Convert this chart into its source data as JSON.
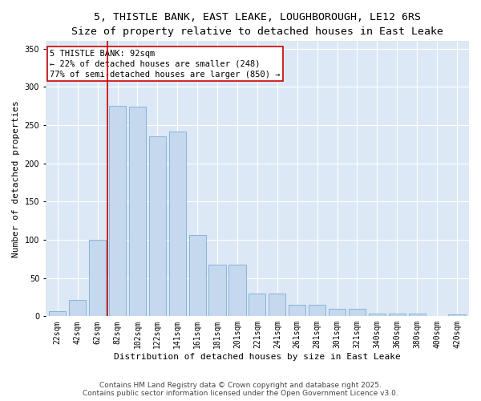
{
  "title_line1": "5, THISTLE BANK, EAST LEAKE, LOUGHBOROUGH, LE12 6RS",
  "title_line2": "Size of property relative to detached houses in East Leake",
  "xlabel": "Distribution of detached houses by size in East Leake",
  "ylabel": "Number of detached properties",
  "categories": [
    "22sqm",
    "42sqm",
    "62sqm",
    "82sqm",
    "102sqm",
    "122sqm",
    "141sqm",
    "161sqm",
    "181sqm",
    "201sqm",
    "221sqm",
    "241sqm",
    "261sqm",
    "281sqm",
    "301sqm",
    "321sqm",
    "340sqm",
    "360sqm",
    "380sqm",
    "400sqm",
    "420sqm"
  ],
  "values": [
    7,
    21,
    100,
    275,
    274,
    235,
    242,
    106,
    68,
    68,
    30,
    30,
    15,
    15,
    10,
    10,
    3,
    4,
    3,
    0,
    2
  ],
  "bar_color": "#c5d8ee",
  "bar_edge_color": "#7aadd4",
  "vline_color": "#cc0000",
  "vline_index": 3,
  "annotation_text": "5 THISTLE BANK: 92sqm\n← 22% of detached houses are smaller (248)\n77% of semi-detached houses are larger (850) →",
  "annotation_box_color": "#cc0000",
  "ylim": [
    0,
    360
  ],
  "yticks": [
    0,
    50,
    100,
    150,
    200,
    250,
    300,
    350
  ],
  "bg_color": "#dce8f5",
  "footer_line1": "Contains HM Land Registry data © Crown copyright and database right 2025.",
  "footer_line2": "Contains public sector information licensed under the Open Government Licence v3.0.",
  "title_fontsize": 9.5,
  "subtitle_fontsize": 8.5,
  "axis_label_fontsize": 8,
  "tick_fontsize": 7,
  "annotation_fontsize": 7.5,
  "footer_fontsize": 6.5
}
